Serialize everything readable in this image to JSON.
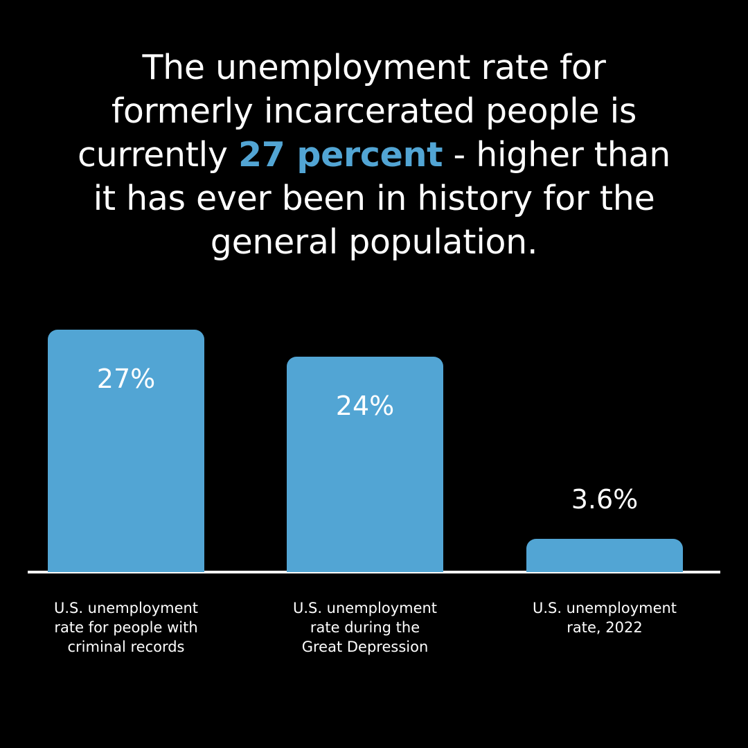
{
  "headline": {
    "line1": "The unemployment rate for",
    "line2": "formerly incarcerated people is",
    "line3_before": "currently ",
    "line3_highlight": "27 percent",
    "line3_after": " - higher than",
    "line4": "it has ever been in history for the",
    "line5": "general population."
  },
  "colors": {
    "background": "#000000",
    "bar": "#52a5d4",
    "highlight": "#52a5d4",
    "text": "#ffffff"
  },
  "chart_data": {
    "type": "bar",
    "title": "",
    "xlabel": "",
    "ylabel": "",
    "ylim": [
      0,
      27
    ],
    "categories": [
      [
        "U.S. unemployment",
        "rate for people with",
        "criminal records"
      ],
      [
        "U.S. unemployment",
        "rate during the",
        "Great Depression"
      ],
      [
        "U.S. unemployment",
        "rate, 2022"
      ]
    ],
    "values": [
      27,
      24,
      3.6
    ],
    "value_labels": [
      "27%",
      "24%",
      "3.6%"
    ],
    "grid": false
  }
}
